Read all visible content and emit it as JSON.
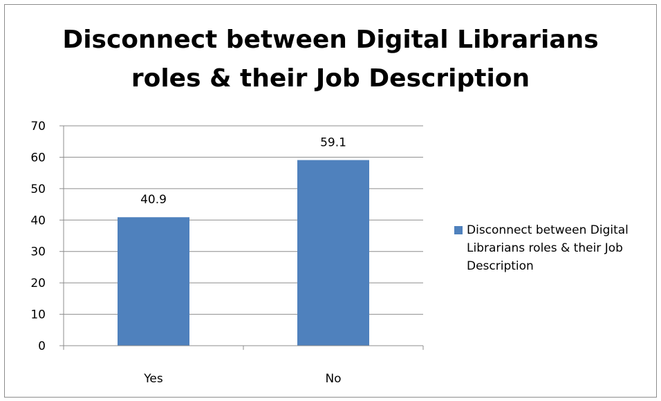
{
  "chart_data": {
    "type": "bar",
    "title_lines": [
      "Disconnect between Digital Librarians",
      "roles & their Job Description"
    ],
    "categories": [
      "Yes",
      "No"
    ],
    "series": [
      {
        "name": "Disconnect between Digital Librarians roles & their Job Description",
        "values": [
          40.9,
          59.1
        ],
        "color": "#4f81bd"
      }
    ],
    "yticks": [
      "0",
      "10",
      "20",
      "30",
      "40",
      "50",
      "60",
      "70"
    ],
    "data_labels": [
      "40.9",
      "59.1"
    ],
    "ylim": [
      0,
      70
    ],
    "grid": true,
    "legend_position": "right",
    "xlabel": "",
    "ylabel": ""
  }
}
